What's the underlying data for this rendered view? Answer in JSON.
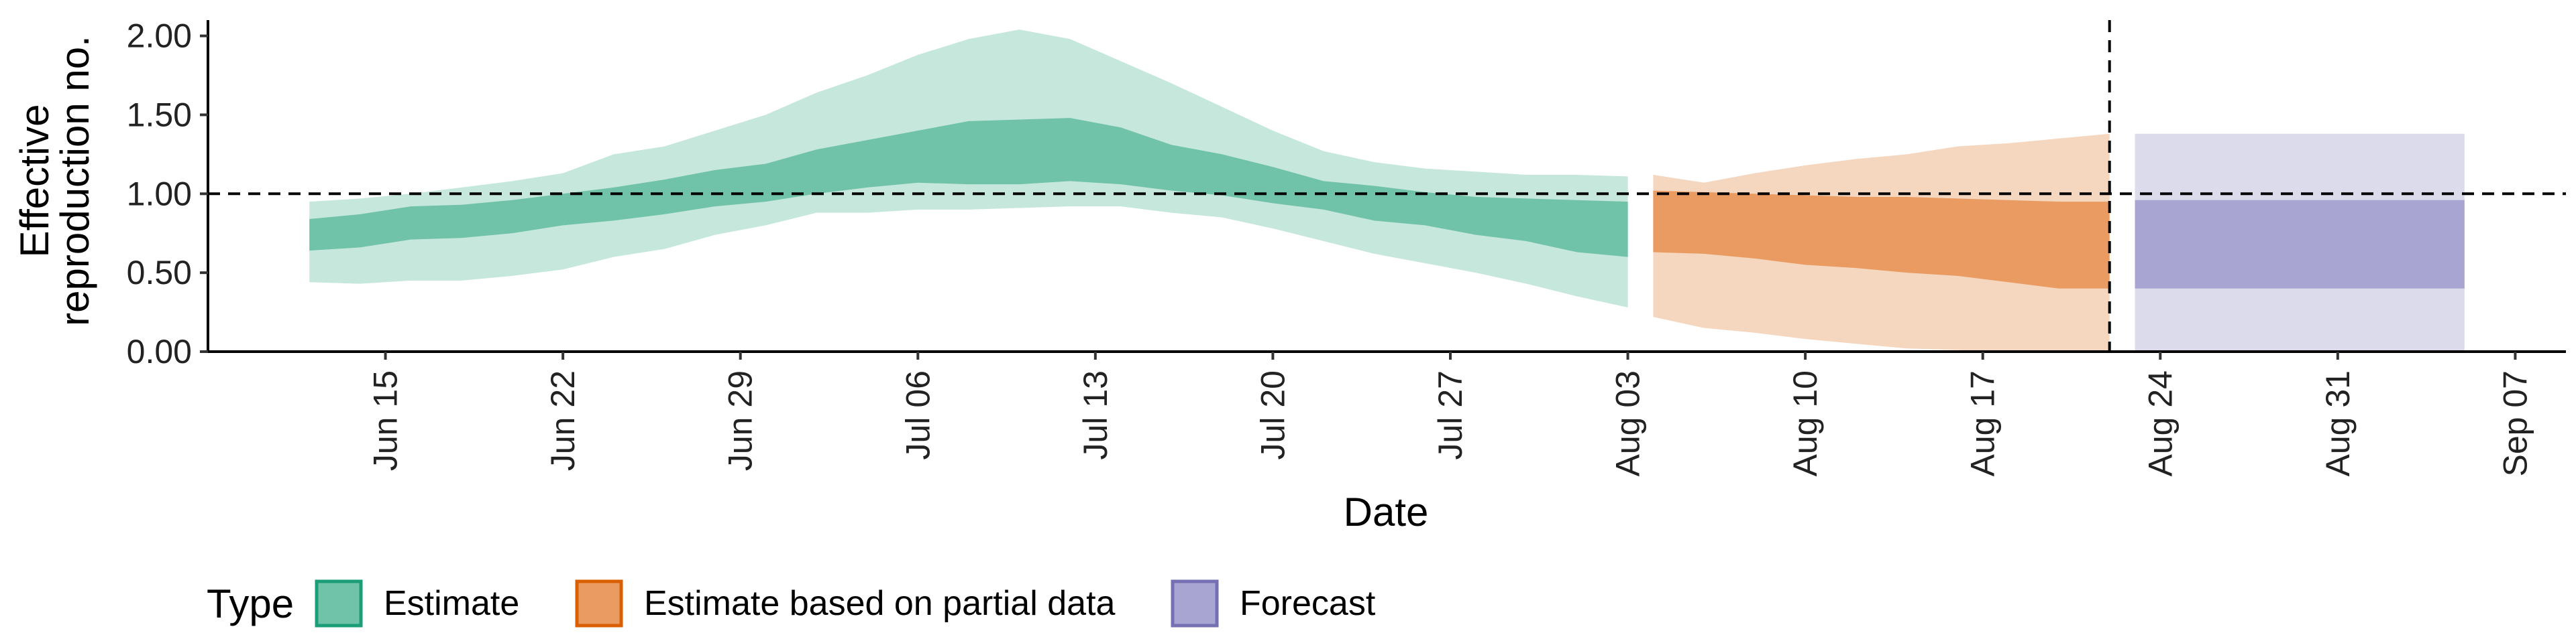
{
  "chart_data": {
    "type": "area",
    "xlabel": "Date",
    "ylabel_lines": [
      "Effective",
      "reproduction no."
    ],
    "ylim": [
      0,
      2.1
    ],
    "y_ticks": [
      0,
      0.5,
      1.0,
      1.5,
      2.0
    ],
    "y_tick_labels": [
      "0.00",
      "0.50",
      "1.00",
      "1.50",
      "2.00"
    ],
    "x_ticks": [
      "2020-06-15",
      "2020-06-22",
      "2020-06-29",
      "2020-07-06",
      "2020-07-13",
      "2020-07-20",
      "2020-07-27",
      "2020-08-03",
      "2020-08-10",
      "2020-08-17",
      "2020-08-24",
      "2020-08-31",
      "2020-09-07"
    ],
    "x_tick_labels": [
      "Jun 15",
      "Jun 22",
      "Jun 29",
      "Jul 06",
      "Jul 13",
      "Jul 20",
      "Jul 27",
      "Aug 03",
      "Aug 10",
      "Aug 17",
      "Aug 24",
      "Aug 31",
      "Sep 07"
    ],
    "xlim": [
      "2020-06-08",
      "2020-09-09"
    ],
    "reference_line_y": 1.0,
    "reference_line_date": "2020-08-22",
    "legend_position": "bottom-left",
    "legend_title": "Type",
    "series": [
      {
        "name": "Estimate",
        "fill_dark": "#70C2A8",
        "fill_light": "#C6E7DC",
        "border": "#1B9E77",
        "points": [
          {
            "date": "2020-06-12",
            "lo90": 0.44,
            "hi90": 0.95,
            "lo50": 0.64,
            "hi50": 0.84
          },
          {
            "date": "2020-06-14",
            "lo90": 0.43,
            "hi90": 0.97,
            "lo50": 0.66,
            "hi50": 0.87
          },
          {
            "date": "2020-06-16",
            "lo90": 0.45,
            "hi90": 1.0,
            "lo50": 0.71,
            "hi50": 0.92
          },
          {
            "date": "2020-06-18",
            "lo90": 0.45,
            "hi90": 1.04,
            "lo50": 0.72,
            "hi50": 0.93
          },
          {
            "date": "2020-06-20",
            "lo90": 0.48,
            "hi90": 1.08,
            "lo50": 0.75,
            "hi50": 0.96
          },
          {
            "date": "2020-06-22",
            "lo90": 0.52,
            "hi90": 1.13,
            "lo50": 0.8,
            "hi50": 1.0
          },
          {
            "date": "2020-06-24",
            "lo90": 0.6,
            "hi90": 1.25,
            "lo50": 0.83,
            "hi50": 1.04
          },
          {
            "date": "2020-06-26",
            "lo90": 0.65,
            "hi90": 1.3,
            "lo50": 0.87,
            "hi50": 1.09
          },
          {
            "date": "2020-06-28",
            "lo90": 0.74,
            "hi90": 1.4,
            "lo50": 0.92,
            "hi50": 1.15
          },
          {
            "date": "2020-06-30",
            "lo90": 0.8,
            "hi90": 1.5,
            "lo50": 0.95,
            "hi50": 1.19
          },
          {
            "date": "2020-07-02",
            "lo90": 0.88,
            "hi90": 1.64,
            "lo50": 1.0,
            "hi50": 1.28
          },
          {
            "date": "2020-07-04",
            "lo90": 0.88,
            "hi90": 1.75,
            "lo50": 1.04,
            "hi50": 1.34
          },
          {
            "date": "2020-07-06",
            "lo90": 0.9,
            "hi90": 1.88,
            "lo50": 1.07,
            "hi50": 1.4
          },
          {
            "date": "2020-07-08",
            "lo90": 0.9,
            "hi90": 1.98,
            "lo50": 1.06,
            "hi50": 1.46
          },
          {
            "date": "2020-07-10",
            "lo90": 0.91,
            "hi90": 2.04,
            "lo50": 1.06,
            "hi50": 1.47
          },
          {
            "date": "2020-07-12",
            "lo90": 0.92,
            "hi90": 1.98,
            "lo50": 1.08,
            "hi50": 1.48
          },
          {
            "date": "2020-07-14",
            "lo90": 0.92,
            "hi90": 1.84,
            "lo50": 1.06,
            "hi50": 1.42
          },
          {
            "date": "2020-07-16",
            "lo90": 0.88,
            "hi90": 1.7,
            "lo50": 1.02,
            "hi50": 1.31
          },
          {
            "date": "2020-07-18",
            "lo90": 0.85,
            "hi90": 1.55,
            "lo50": 0.99,
            "hi50": 1.25
          },
          {
            "date": "2020-07-20",
            "lo90": 0.78,
            "hi90": 1.4,
            "lo50": 0.94,
            "hi50": 1.17
          },
          {
            "date": "2020-07-22",
            "lo90": 0.7,
            "hi90": 1.27,
            "lo50": 0.9,
            "hi50": 1.08
          },
          {
            "date": "2020-07-24",
            "lo90": 0.62,
            "hi90": 1.2,
            "lo50": 0.83,
            "hi50": 1.05
          },
          {
            "date": "2020-07-26",
            "lo90": 0.56,
            "hi90": 1.16,
            "lo50": 0.8,
            "hi50": 1.01
          },
          {
            "date": "2020-07-28",
            "lo90": 0.5,
            "hi90": 1.14,
            "lo50": 0.74,
            "hi50": 0.98
          },
          {
            "date": "2020-07-30",
            "lo90": 0.43,
            "hi90": 1.12,
            "lo50": 0.7,
            "hi50": 0.97
          },
          {
            "date": "2020-08-01",
            "lo90": 0.35,
            "hi90": 1.12,
            "lo50": 0.63,
            "hi50": 0.96
          },
          {
            "date": "2020-08-03",
            "lo90": 0.28,
            "hi90": 1.11,
            "lo50": 0.6,
            "hi50": 0.95
          }
        ]
      },
      {
        "name": "Estimate based on partial data",
        "fill_dark": "#E99B61",
        "fill_light": "#F5D6BF",
        "border": "#D95F02",
        "points": [
          {
            "date": "2020-08-04",
            "lo90": 0.22,
            "hi90": 1.12,
            "lo50": 0.63,
            "hi50": 1.02
          },
          {
            "date": "2020-08-06",
            "lo90": 0.15,
            "hi90": 1.07,
            "lo50": 0.62,
            "hi50": 1.01
          },
          {
            "date": "2020-08-08",
            "lo90": 0.12,
            "hi90": 1.13,
            "lo50": 0.59,
            "hi50": 1.0
          },
          {
            "date": "2020-08-10",
            "lo90": 0.08,
            "hi90": 1.18,
            "lo50": 0.55,
            "hi50": 0.99
          },
          {
            "date": "2020-08-12",
            "lo90": 0.05,
            "hi90": 1.22,
            "lo50": 0.53,
            "hi50": 0.98
          },
          {
            "date": "2020-08-14",
            "lo90": 0.02,
            "hi90": 1.25,
            "lo50": 0.5,
            "hi50": 0.98
          },
          {
            "date": "2020-08-16",
            "lo90": 0.01,
            "hi90": 1.3,
            "lo50": 0.48,
            "hi50": 0.97
          },
          {
            "date": "2020-08-18",
            "lo90": 0.0,
            "hi90": 1.32,
            "lo50": 0.44,
            "hi50": 0.96
          },
          {
            "date": "2020-08-20",
            "lo90": 0.0,
            "hi90": 1.35,
            "lo50": 0.4,
            "hi50": 0.95
          },
          {
            "date": "2020-08-22",
            "lo90": 0.0,
            "hi90": 1.38,
            "lo50": 0.4,
            "hi50": 0.95
          }
        ]
      },
      {
        "name": "Forecast",
        "fill_dark": "#A8A5D2",
        "fill_light": "#DCDBEB",
        "border": "#7570B3",
        "points": [
          {
            "date": "2020-08-23",
            "lo90": 0.0,
            "hi90": 1.38,
            "lo50": 0.4,
            "hi50": 0.96
          },
          {
            "date": "2020-09-05",
            "lo90": 0.0,
            "hi90": 1.38,
            "lo50": 0.4,
            "hi50": 0.96
          }
        ]
      }
    ]
  }
}
